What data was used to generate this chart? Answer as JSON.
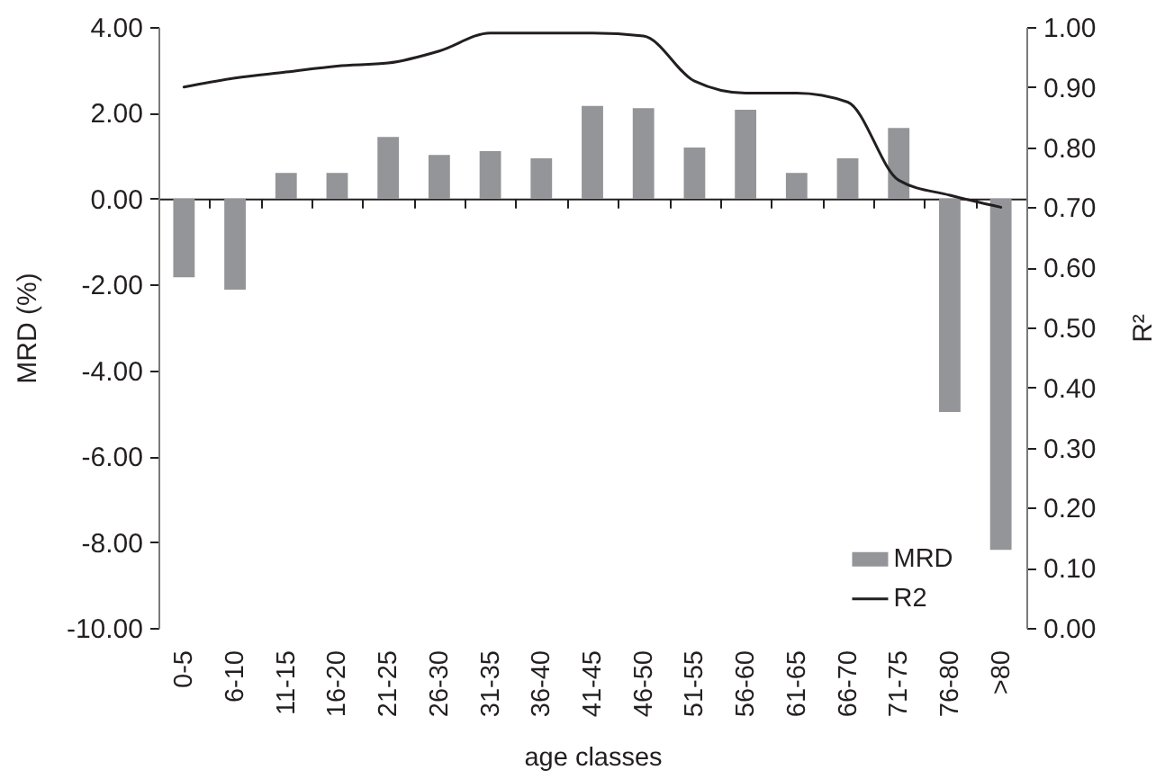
{
  "chart_data": {
    "type": "bar",
    "xlabel": "age classes",
    "ylabel": "MRD (%)",
    "y2label": "R²",
    "categories": [
      "0-5",
      "6-10",
      "11-15",
      "16-20",
      "21-25",
      "26-30",
      "31-35",
      "36-40",
      "41-45",
      "46-50",
      "51-55",
      "56-60",
      "61-65",
      "66-70",
      "71-75",
      "76-80",
      ">80"
    ],
    "series": [
      {
        "name": "MRD",
        "color": "#939598",
        "values": [
          -1.83,
          -2.12,
          0.6,
          0.6,
          1.44,
          1.02,
          1.11,
          0.94,
          2.16,
          2.11,
          1.19,
          2.07,
          0.6,
          0.94,
          1.65,
          -4.97,
          -8.18
        ]
      },
      {
        "name": "R2",
        "type": "line",
        "axis": "y2",
        "color": "#231f20",
        "values": [
          0.9,
          0.915,
          0.925,
          0.935,
          0.94,
          0.96,
          0.99,
          0.99,
          0.99,
          0.985,
          0.91,
          0.89,
          0.89,
          0.875,
          0.745,
          0.72,
          0.7
        ]
      }
    ],
    "ylim": [
      -10,
      4
    ],
    "yticks": [
      {
        "value": -10,
        "label": "-10.00"
      },
      {
        "value": -8,
        "label": "-8.00"
      },
      {
        "value": -6,
        "label": "-6.00"
      },
      {
        "value": -4,
        "label": "-4.00"
      },
      {
        "value": -2,
        "label": "-2.00"
      },
      {
        "value": 0,
        "label": "0.00"
      },
      {
        "value": 2,
        "label": "2.00"
      },
      {
        "value": 4,
        "label": "4.00"
      }
    ],
    "y2lim": [
      0,
      1
    ],
    "y2ticks": [
      {
        "value": 0,
        "label": "0.00"
      },
      {
        "value": 0.1,
        "label": "0.10"
      },
      {
        "value": 0.2,
        "label": "0.20"
      },
      {
        "value": 0.3,
        "label": "0.30"
      },
      {
        "value": 0.4,
        "label": "0.40"
      },
      {
        "value": 0.5,
        "label": "0.50"
      },
      {
        "value": 0.6,
        "label": "0.60"
      },
      {
        "value": 0.7,
        "label": "0.70"
      },
      {
        "value": 0.8,
        "label": "0.80"
      },
      {
        "value": 0.9,
        "label": "0.90"
      },
      {
        "value": 1,
        "label": "1.00"
      }
    ],
    "legend": "bottom right"
  }
}
